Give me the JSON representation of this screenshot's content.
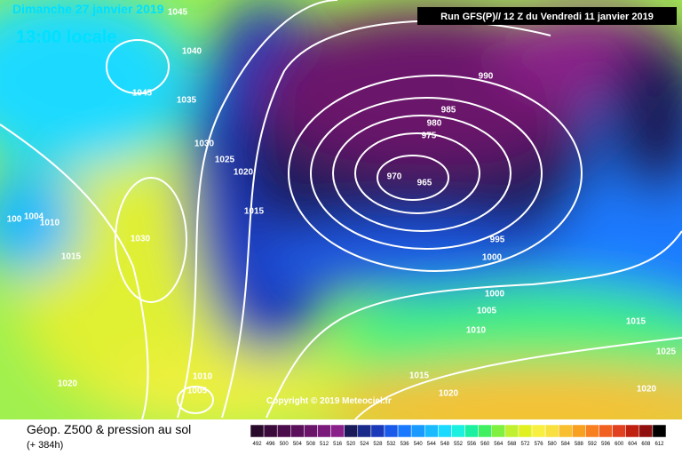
{
  "header": {
    "date": "Dimanche 27 janvier 2019",
    "time": "13:00 locale",
    "run": "Run GFS(P)// 12 Z du Vendredi 11 janvier 2019"
  },
  "isobar_labels": [
    "1045",
    "1040",
    "1045",
    "1035",
    "1030",
    "1025",
    "1020",
    "1015",
    "990",
    "985",
    "980",
    "975",
    "970",
    "965",
    "995",
    "1000",
    "1000",
    "1005",
    "1010",
    "1015",
    "1025",
    "1020",
    "1015",
    "1020",
    "1030",
    "1010",
    "1004",
    "100",
    "1015",
    "1020",
    "1010",
    "1005"
  ],
  "copyright": "Copyright © 2019 Meteociel.fr",
  "footer": {
    "title": "Géop. Z500 & pression au sol",
    "lead": "(+ 384h)"
  },
  "scale": {
    "labels": [
      492,
      496,
      500,
      504,
      508,
      512,
      516,
      520,
      524,
      528,
      532,
      536,
      540,
      544,
      548,
      552,
      556,
      560,
      564,
      568,
      572,
      576,
      580,
      584,
      588,
      592,
      596,
      600,
      604,
      608,
      612
    ],
    "colors": [
      "#2a0a2a",
      "#3a0a3a",
      "#4a0c4a",
      "#5a105a",
      "#6a146a",
      "#7a1a7a",
      "#8a208a",
      "#1a1a5a",
      "#1a2a8a",
      "#1a3aba",
      "#1a5aea",
      "#1a7aff",
      "#1a9aff",
      "#1abaff",
      "#1adaff",
      "#1af0e0",
      "#1af0a0",
      "#40f060",
      "#80f040",
      "#c0f030",
      "#e0f020",
      "#f8f040",
      "#f8e040",
      "#f8c030",
      "#f8a020",
      "#f88020",
      "#f06020",
      "#e04020",
      "#c02010",
      "#901010",
      "#000000"
    ]
  }
}
